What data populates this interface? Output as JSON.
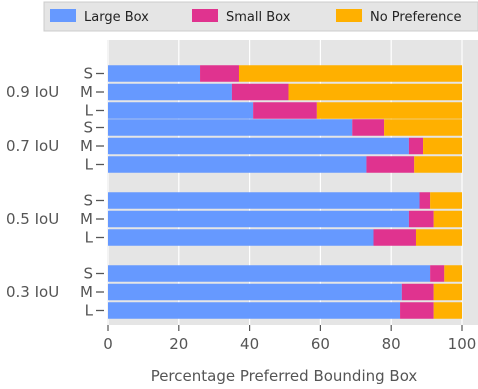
{
  "chart_data": {
    "type": "bar",
    "orientation": "horizontal",
    "stacked": true,
    "xlabel": "Percentage Preferred Bounding Box",
    "xlim": [
      0,
      100
    ],
    "xticks": [
      0,
      20,
      40,
      60,
      80,
      100
    ],
    "grid": true,
    "legend_placement": "top",
    "groups": [
      {
        "label": "0.9 IoU",
        "bars": [
          {
            "label": "S",
            "values": [
              26,
              11,
              63
            ]
          },
          {
            "label": "M",
            "values": [
              35,
              16,
              49
            ]
          },
          {
            "label": "L",
            "values": [
              41,
              18,
              41
            ]
          }
        ]
      },
      {
        "label": "0.7 IoU",
        "bars": [
          {
            "label": "S",
            "values": [
              69,
              9,
              22
            ]
          },
          {
            "label": "M",
            "values": [
              85,
              4,
              11
            ]
          },
          {
            "label": "L",
            "values": [
              73,
              13.5,
              13.5
            ]
          }
        ]
      },
      {
        "label": "0.5 IoU",
        "bars": [
          {
            "label": "S",
            "values": [
              88,
              3,
              9
            ]
          },
          {
            "label": "M",
            "values": [
              85,
              7,
              8
            ]
          },
          {
            "label": "L",
            "values": [
              75,
              12,
              13
            ]
          }
        ]
      },
      {
        "label": "0.3 IoU",
        "bars": [
          {
            "label": "S",
            "values": [
              91,
              4,
              5
            ]
          },
          {
            "label": "M",
            "values": [
              83,
              9,
              8
            ]
          },
          {
            "label": "L",
            "values": [
              82.5,
              9.5,
              8
            ]
          }
        ]
      }
    ],
    "series": [
      {
        "name": "Large Box",
        "color": "#6699ff"
      },
      {
        "name": "Small Box",
        "color": "#e0338f"
      },
      {
        "name": "No Preference",
        "color": "#ffb000"
      }
    ]
  }
}
